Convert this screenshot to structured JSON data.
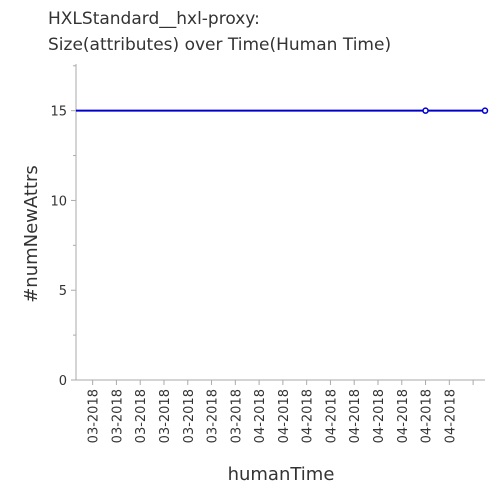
{
  "chart_data": {
    "type": "line",
    "title_lines": [
      "HXLStandard__hxl-proxy:",
      "Size(attributes) over Time(Human Time)"
    ],
    "xlabel": "humanTime",
    "ylabel": "#numNewAttrs",
    "categories": [
      "03-2018",
      "03-2018",
      "03-2018",
      "03-2018",
      "03-2018",
      "03-2018",
      "03-2018",
      "03-2018",
      "04-2018",
      "04-2018",
      "04-2018",
      "04-2018",
      "04-2018",
      "04-2018",
      "04-2018",
      "04-2018"
    ],
    "x_ticks": [
      0,
      1,
      2,
      3,
      4,
      5,
      6,
      7,
      8,
      9,
      10,
      11,
      12,
      13,
      14,
      15,
      16
    ],
    "x_tick_labels": [
      "03-2018",
      "03-2018",
      "03-2018",
      "03-2018",
      "03-2018",
      "03-2018",
      "03-2018",
      "04-2018",
      "04-2018",
      "04-2018",
      "04-2018",
      "04-2018",
      "04-2018",
      "04-2018",
      "04-2018",
      "04-2018",
      "04-2018"
    ],
    "x_tick_label_shown": [
      true,
      true,
      true,
      true,
      true,
      true,
      true,
      true,
      true,
      true,
      true,
      true,
      true,
      true,
      true,
      true,
      false
    ],
    "xlim": [
      -0.7,
      16.5
    ],
    "series": [
      {
        "values": [
          15,
          15,
          15,
          15,
          15,
          15,
          15,
          15,
          15,
          15,
          15,
          15,
          15,
          15,
          15,
          15,
          15
        ],
        "x": [
          -0.7,
          0,
          1,
          2,
          3,
          4,
          5,
          6,
          7,
          8,
          9,
          10,
          11,
          12,
          13,
          14,
          16.5
        ],
        "marker_indices": [
          15,
          16
        ],
        "color": "#0000cc"
      }
    ],
    "y_ticks": [
      0,
      5,
      10,
      15
    ],
    "y_minor_ticks": [
      2.5,
      7.5,
      12.5,
      17.5
    ],
    "ylim": [
      0,
      17.6
    ],
    "grid": false,
    "axis_color": "#aaaaaa",
    "text_color": "#333333"
  }
}
